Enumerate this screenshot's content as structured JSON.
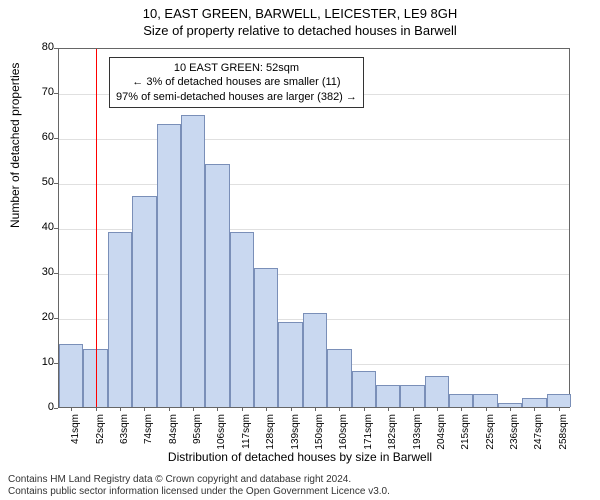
{
  "title": "10, EAST GREEN, BARWELL, LEICESTER, LE9 8GH",
  "subtitle": "Size of property relative to detached houses in Barwell",
  "y_axis_label": "Number of detached properties",
  "x_axis_label": "Distribution of detached houses by size in Barwell",
  "chart": {
    "type": "histogram",
    "ylim": [
      0,
      80
    ],
    "ytick_step": 10,
    "y_ticks": [
      0,
      10,
      20,
      30,
      40,
      50,
      60,
      70,
      80
    ],
    "x_labels": [
      "41sqm",
      "52sqm",
      "63sqm",
      "74sqm",
      "84sqm",
      "95sqm",
      "106sqm",
      "117sqm",
      "128sqm",
      "139sqm",
      "150sqm",
      "160sqm",
      "171sqm",
      "182sqm",
      "193sqm",
      "204sqm",
      "215sqm",
      "225sqm",
      "236sqm",
      "247sqm",
      "258sqm"
    ],
    "values": [
      14,
      13,
      39,
      47,
      63,
      65,
      54,
      39,
      31,
      19,
      21,
      13,
      8,
      5,
      5,
      7,
      3,
      3,
      1,
      2,
      3
    ],
    "bar_fill": "#c9d8f0",
    "bar_stroke": "#7a8fb8",
    "background_color": "#ffffff",
    "grid_color": "#e0e0e0",
    "axis_color": "#666666",
    "marker_line_color": "#ff0000",
    "marker_position_index": 1
  },
  "annotation": {
    "line1": "10 EAST GREEN: 52sqm",
    "line2": "← 3% of detached houses are smaller (11)",
    "line3": "97% of semi-detached houses are larger (382) →"
  },
  "footer": {
    "line1": "Contains HM Land Registry data © Crown copyright and database right 2024.",
    "line2": "Contains public sector information licensed under the Open Government Licence v3.0."
  }
}
